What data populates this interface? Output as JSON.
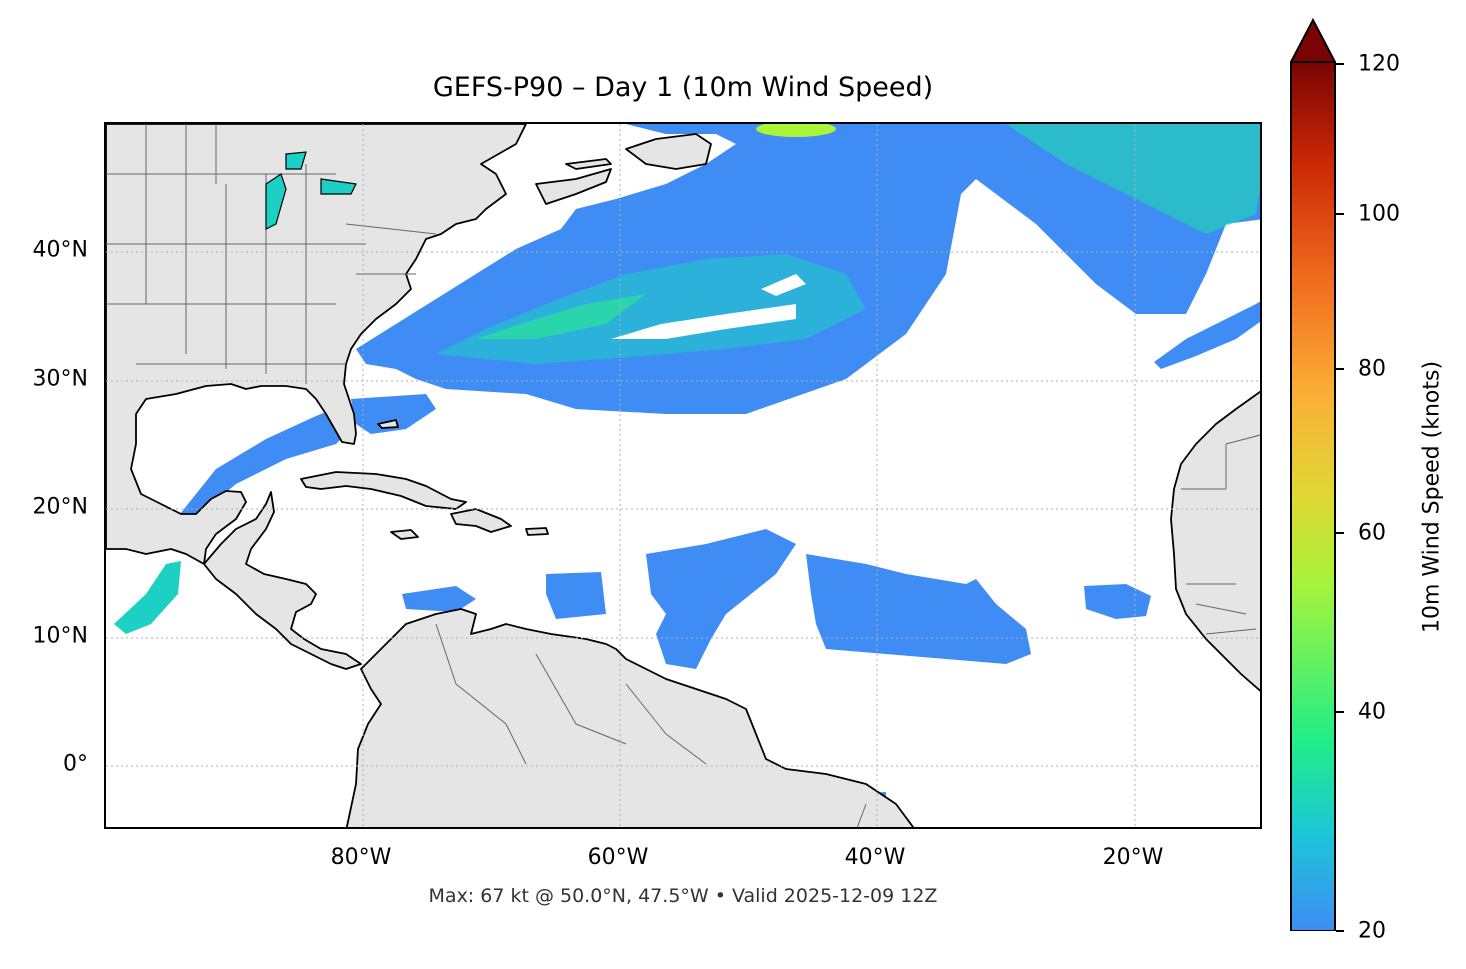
{
  "title": "GEFS-P90 – Day 1 (10m Wind Speed)",
  "footer": "Max: 67 kt @ 50.0°N, 47.5°W • Valid 2025-12-09 12Z",
  "colors": {
    "land": "#e5e5e5",
    "wind_low": "#3f8cf5",
    "wind_mid": "#1de8a0",
    "wind_high": "#aaf53a",
    "coast": "#000000",
    "border": "#666666",
    "grid": "#b0b0b0"
  },
  "map": {
    "extent": {
      "lon_min": -100,
      "lon_max": -10,
      "lat_min": -5,
      "lat_max": 50
    },
    "lat_labels": [
      {
        "text": "40°N",
        "lat": 40
      },
      {
        "text": "30°N",
        "lat": 30
      },
      {
        "text": "20°N",
        "lat": 20
      },
      {
        "text": "10°N",
        "lat": 10
      },
      {
        "text": "0°",
        "lat": 0
      }
    ],
    "lon_labels": [
      {
        "text": "80°W",
        "lon": -80
      },
      {
        "text": "60°W",
        "lon": -60
      },
      {
        "text": "40°W",
        "lon": -40
      },
      {
        "text": "20°W",
        "lon": -20
      }
    ]
  },
  "colorbar": {
    "label": "10m Wind Speed (knots)",
    "min": 20,
    "max": 120,
    "extend": "max",
    "ticks": [
      "20",
      "40",
      "60",
      "80",
      "100",
      "120"
    ],
    "tick_values": [
      20,
      40,
      60,
      80,
      100,
      120
    ],
    "stops": [
      "#3f8cf5",
      "#1cc6d8",
      "#21ee86",
      "#a6f43a",
      "#e0d835",
      "#fbae36",
      "#f06b1e",
      "#cc2a06",
      "#8b0a02",
      "#7a0403"
    ]
  }
}
